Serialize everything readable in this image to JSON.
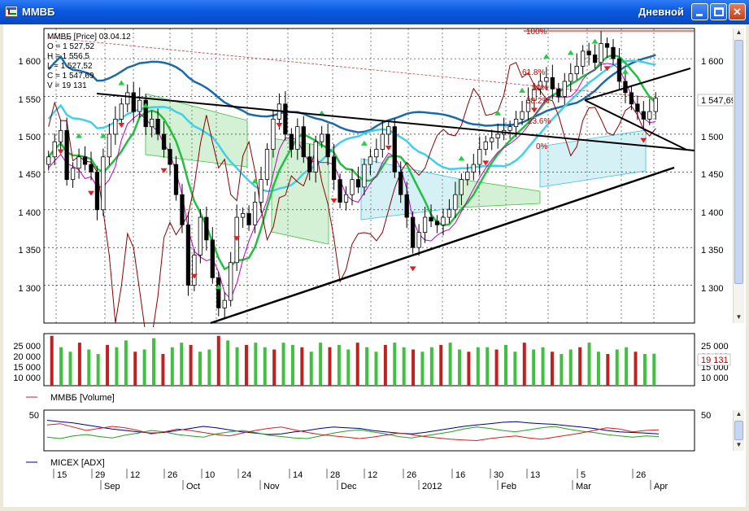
{
  "window": {
    "title": "ММВБ",
    "timeframe": "Дневной",
    "min_label": "",
    "max_label": "",
    "close_label": "✕"
  },
  "price_pane": {
    "info_lines": [
      "ММВБ [Price] 03.04.12",
      "O = 1 527,52",
      "H = 1 556,5",
      "L = 1 527,52",
      "C = 1 547,69",
      "V = 19 131"
    ],
    "y_ticks": [
      "1 600",
      "1 550",
      "1 500",
      "1 450",
      "1 400",
      "1 350",
      "1 300"
    ],
    "last_price_label": "1 547,69",
    "fib_labels": [
      "100%",
      "61.8%",
      "50%",
      "38.2%",
      "23.6%",
      "0%"
    ]
  },
  "volume_pane": {
    "y_ticks": [
      "25 000",
      "20 000",
      "15 000",
      "10 000"
    ],
    "last_volume_label": "19 131",
    "legend": "ММВБ [Volume]"
  },
  "adx_pane": {
    "y_ticks": [
      "50"
    ],
    "legend": "MICEX [ADX]"
  },
  "time_axis": {
    "day_labels": [
      "15",
      "29",
      "12",
      "26",
      "10",
      "24",
      "14",
      "28",
      "12",
      "26",
      "16",
      "30",
      "13",
      "5",
      "26"
    ],
    "month_labels": [
      "Sep",
      "Oct",
      "Nov",
      "Dec",
      "2012",
      "Feb",
      "Mar",
      "Apr"
    ]
  },
  "colors": {
    "titlebar": "#0a58e0",
    "up_candle": "#ffffff",
    "down_candle": "#000000",
    "ema_fast": "#20c040",
    "ema_slow": "#1a6aa8",
    "ema_mid": "#40d0e8",
    "volume_up": "#40c040",
    "volume_down": "#c02020",
    "adx": "#000080",
    "di_plus": "#20a020",
    "di_minus": "#d02020",
    "fractal_up": "#20d040",
    "fractal_down": "#e02020"
  },
  "chart_data": [
    {
      "type": "candlestick",
      "title": "ММВБ [Price] 03.04.12",
      "ylim": [
        1250,
        1640
      ],
      "y_ticks": [
        1300,
        1350,
        1400,
        1450,
        1500,
        1550,
        1600
      ],
      "last": {
        "open": 1527.52,
        "high": 1556.5,
        "low": 1527.52,
        "close": 1547.69,
        "volume": 19131
      },
      "closes_approx": [
        1470,
        1490,
        1505,
        1440,
        1455,
        1470,
        1460,
        1450,
        1400,
        1470,
        1500,
        1520,
        1540,
        1555,
        1530,
        1545,
        1510,
        1520,
        1500,
        1480,
        1460,
        1420,
        1380,
        1300,
        1340,
        1390,
        1360,
        1310,
        1270,
        1280,
        1330,
        1390,
        1395,
        1380,
        1410,
        1440,
        1480,
        1520,
        1540,
        1500,
        1480,
        1510,
        1470,
        1450,
        1490,
        1500,
        1470,
        1440,
        1410,
        1420,
        1440,
        1430,
        1460,
        1470,
        1480,
        1500,
        1510,
        1450,
        1420,
        1390,
        1350,
        1370,
        1390,
        1385,
        1380,
        1390,
        1400,
        1420,
        1440,
        1450,
        1460,
        1480,
        1490,
        1495,
        1500,
        1505,
        1510,
        1520,
        1530,
        1545,
        1560,
        1570,
        1575,
        1560,
        1550,
        1570,
        1580,
        1590,
        1610,
        1605,
        1595,
        1620,
        1615,
        1600,
        1570,
        1555,
        1540,
        1530,
        1520,
        1530,
        1547.69
      ]
    },
    {
      "type": "bar",
      "title": "ММВБ [Volume]",
      "ylim": [
        5000,
        28000
      ],
      "values_approx": [
        27000,
        22000,
        20000,
        24000,
        21000,
        19000,
        23000,
        22000,
        25000,
        20000,
        21000,
        26000,
        19000,
        22000,
        24000,
        23000,
        20000,
        21000,
        27000,
        25000,
        22000,
        23000,
        24000,
        22000,
        21000,
        24000,
        23000,
        22000,
        20000,
        24000,
        22000,
        23000,
        21000,
        24000,
        22000,
        20000,
        23000,
        24000,
        22000,
        21000,
        20000,
        22000,
        23000,
        24000,
        21000,
        20000,
        22000,
        22000,
        21000,
        23000,
        20000,
        24000,
        21000,
        22000,
        20000,
        19000,
        21000,
        22000,
        24000,
        20000,
        19000,
        21000,
        22000,
        20000,
        19000,
        19131
      ]
    },
    {
      "type": "line",
      "title": "MICEX [ADX]",
      "ylim": [
        0,
        60
      ],
      "series": [
        {
          "name": "",
          "values": [
            45,
            43,
            41,
            38,
            35,
            32,
            30,
            28,
            26,
            27,
            30,
            33,
            36,
            34,
            31,
            28,
            26,
            24,
            25,
            28,
            30,
            33,
            35,
            34,
            33,
            30,
            28,
            26,
            25,
            27,
            30,
            33,
            36,
            38,
            40,
            42,
            43,
            41,
            40,
            39,
            37,
            35,
            33,
            30,
            28,
            27,
            26,
            25
          ]
        },
        {
          "name": "",
          "values": [
            20,
            18,
            22,
            24,
            21,
            19,
            23,
            26,
            30,
            28,
            24,
            22,
            20,
            25,
            28,
            30,
            27,
            23,
            21,
            19,
            18,
            22,
            26,
            29,
            31,
            28,
            25,
            21,
            19,
            22,
            25,
            28,
            32,
            35,
            33,
            30,
            28,
            31,
            34,
            36,
            32,
            29,
            27,
            24,
            22,
            20,
            22,
            21
          ]
        },
        {
          "name": "",
          "values": [
            38,
            40,
            35,
            30,
            33,
            36,
            34,
            30,
            25,
            28,
            32,
            30,
            27,
            24,
            22,
            26,
            30,
            33,
            35,
            31,
            27,
            24,
            22,
            20,
            18,
            20,
            23,
            26,
            24,
            21,
            19,
            17,
            16,
            15,
            18,
            20,
            22,
            19,
            17,
            20,
            23,
            26,
            30,
            34,
            32,
            28,
            30,
            31
          ]
        }
      ]
    }
  ]
}
